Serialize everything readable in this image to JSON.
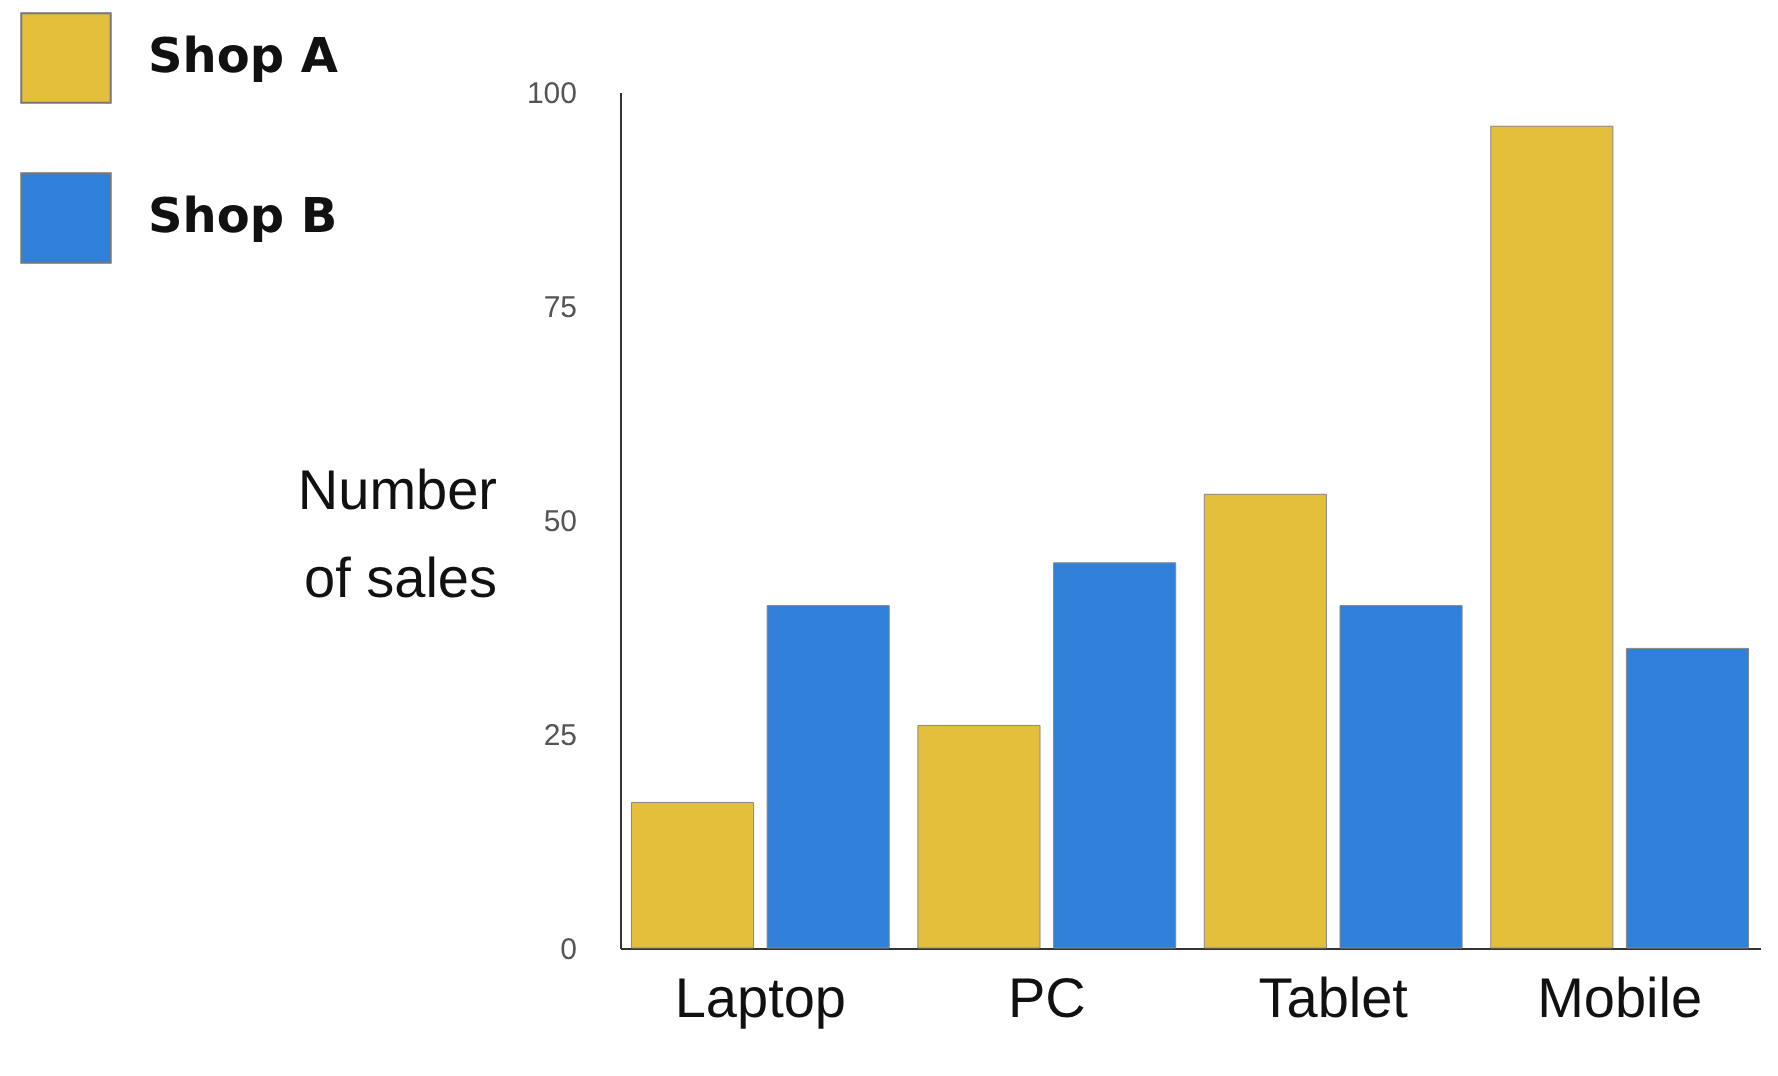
{
  "chart_data": {
    "type": "bar",
    "ylabel": "Number of sales",
    "categories": [
      "Laptop",
      "PC",
      "Tablet",
      "Mobile"
    ],
    "series": [
      {
        "name": "Shop A",
        "color": "#e3bf3c",
        "values": [
          17,
          26,
          53,
          96
        ]
      },
      {
        "name": "Shop B",
        "color": "#2f80d8",
        "values": [
          40,
          45,
          40,
          35
        ]
      }
    ],
    "ylim": [
      0,
      100
    ],
    "yticks": [
      0,
      25,
      50,
      75,
      100
    ],
    "grid": false,
    "legend": "top left"
  }
}
